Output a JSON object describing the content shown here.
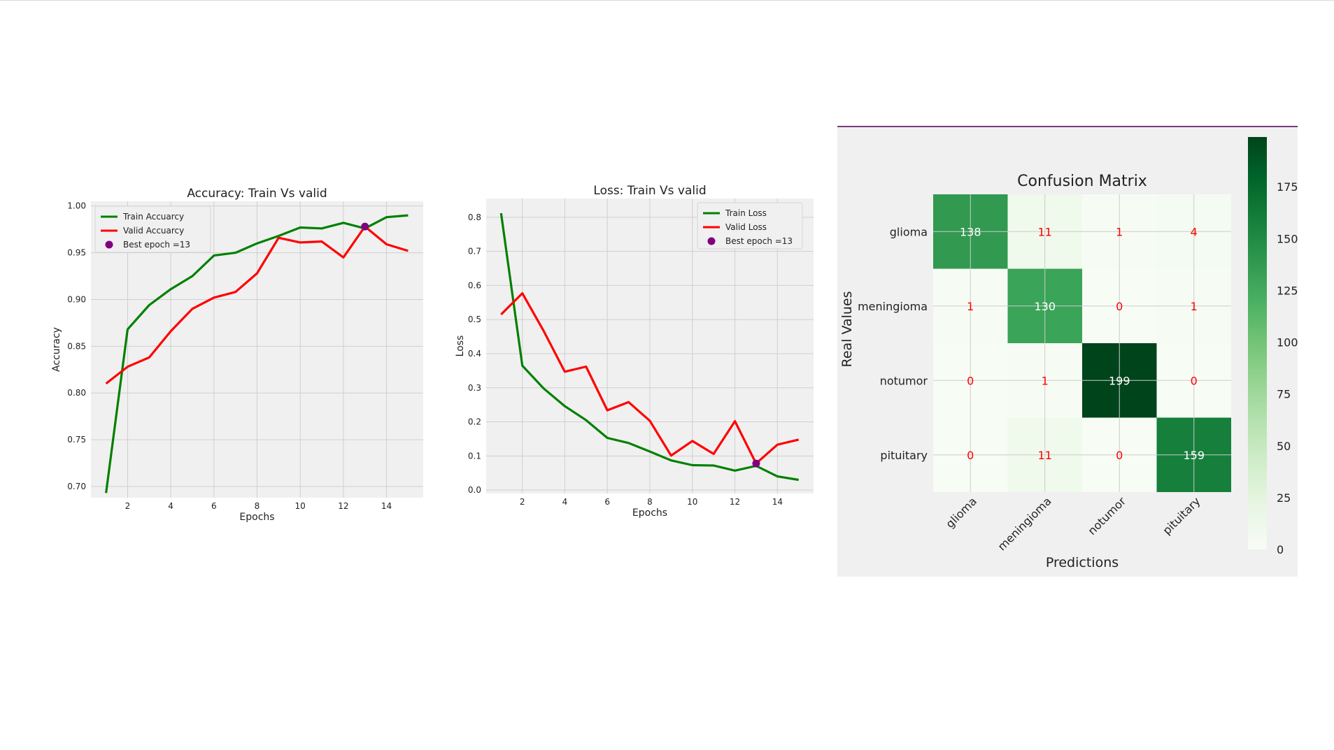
{
  "chart_data": [
    {
      "type": "line",
      "title": "Accuracy: Train Vs valid",
      "xlabel": "Epochs",
      "ylabel": "Accuracy",
      "x": [
        1,
        2,
        3,
        4,
        5,
        6,
        7,
        8,
        9,
        10,
        11,
        12,
        13,
        14,
        15
      ],
      "xticks": [
        2,
        4,
        6,
        8,
        10,
        12,
        14
      ],
      "xlim": [
        0.3,
        15.7
      ],
      "yticks": [
        0.7,
        0.75,
        0.8,
        0.85,
        0.9,
        0.95,
        1.0
      ],
      "ylim": [
        0.688,
        1.005
      ],
      "grid": true,
      "legend": "top-left",
      "series": [
        {
          "name": "Train Accuarcy",
          "color": "#008000",
          "values": [
            0.693,
            0.868,
            0.894,
            0.911,
            0.925,
            0.947,
            0.95,
            0.96,
            0.968,
            0.977,
            0.976,
            0.982,
            0.976,
            0.988,
            0.99
          ]
        },
        {
          "name": "Valid Accuarcy",
          "color": "#ff0000",
          "values": [
            0.81,
            0.828,
            0.838,
            0.866,
            0.89,
            0.902,
            0.908,
            0.928,
            0.966,
            0.961,
            0.962,
            0.945,
            0.978,
            0.959,
            0.952
          ]
        }
      ],
      "best_point": {
        "label": "Best epoch =13",
        "x": 13,
        "y": 0.978,
        "color": "#800080"
      }
    },
    {
      "type": "line",
      "title": "Loss: Train Vs valid",
      "xlabel": "Epochs",
      "ylabel": "Loss",
      "x": [
        1,
        2,
        3,
        4,
        5,
        6,
        7,
        8,
        9,
        10,
        11,
        12,
        13,
        14,
        15
      ],
      "xticks": [
        2,
        4,
        6,
        8,
        10,
        12,
        14
      ],
      "xlim": [
        0.3,
        15.7
      ],
      "yticks": [
        0.0,
        0.1,
        0.2,
        0.3,
        0.4,
        0.5,
        0.6,
        0.7,
        0.8
      ],
      "ylim": [
        -0.01,
        0.855
      ],
      "grid": true,
      "legend": "top-right",
      "series": [
        {
          "name": "Train Loss",
          "color": "#008000",
          "values": [
            0.812,
            0.365,
            0.298,
            0.246,
            0.205,
            0.153,
            0.138,
            0.113,
            0.087,
            0.073,
            0.072,
            0.057,
            0.071,
            0.04,
            0.03
          ]
        },
        {
          "name": "Valid Loss",
          "color": "#ff0000",
          "values": [
            0.515,
            0.577,
            0.467,
            0.347,
            0.362,
            0.234,
            0.258,
            0.203,
            0.101,
            0.144,
            0.106,
            0.202,
            0.078,
            0.133,
            0.148
          ]
        }
      ],
      "best_point": {
        "label": "Best epoch =13",
        "x": 13,
        "y": 0.078,
        "color": "#800080"
      }
    },
    {
      "type": "heatmap",
      "title": "Confusion Matrix",
      "xlabel": "Predictions",
      "ylabel": "Real Values",
      "categories": [
        "glioma",
        "meningioma",
        "notumor",
        "pituitary"
      ],
      "matrix": [
        [
          138,
          11,
          1,
          4
        ],
        [
          1,
          130,
          0,
          1
        ],
        [
          0,
          1,
          199,
          0
        ],
        [
          0,
          11,
          0,
          159
        ]
      ],
      "colorbar_ticks": [
        0,
        25,
        50,
        75,
        100,
        125,
        150,
        175
      ],
      "vmin": 0,
      "vmax": 199,
      "cmap": "Greens",
      "value_colors": {
        "dark": "#ffffff",
        "light": "#ff0000"
      }
    }
  ]
}
